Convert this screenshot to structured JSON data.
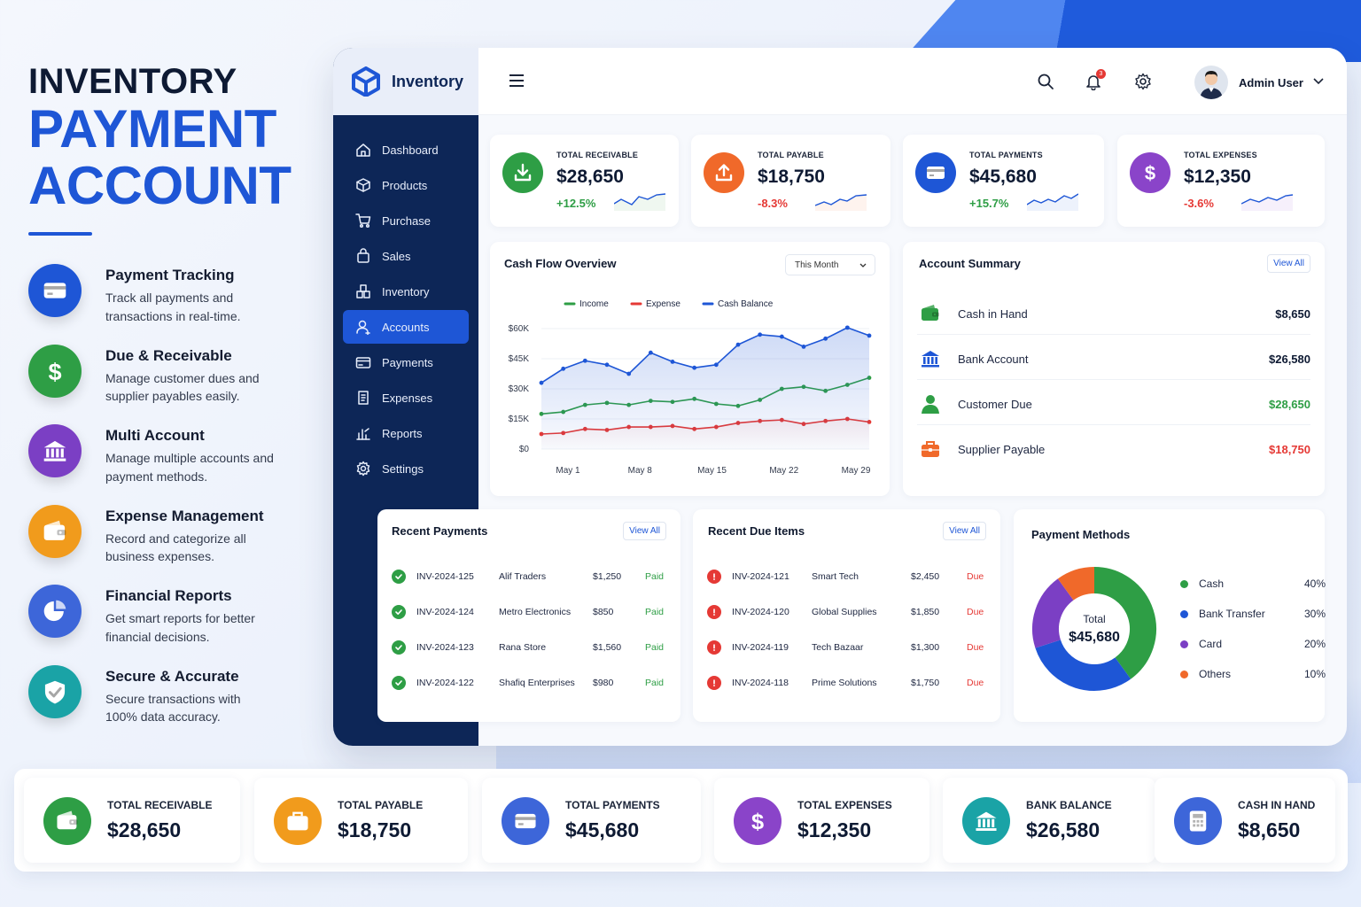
{
  "hero": {
    "line1": "INVENTORY",
    "line2": "PAYMENT",
    "line3": "ACCOUNT"
  },
  "features": [
    {
      "title": "Payment Tracking",
      "desc": "Track all payments and transactions in real-time.",
      "icon": "card-icon",
      "color": "#1e56d6"
    },
    {
      "title": "Due & Receivable",
      "desc": "Manage customer dues and supplier payables easily.",
      "icon": "dollar-icon",
      "color": "#2e9e45"
    },
    {
      "title": "Multi Account",
      "desc": "Manage multiple accounts and payment methods.",
      "icon": "bank-icon",
      "color": "#7b3fc4"
    },
    {
      "title": "Expense Management",
      "desc": "Record and categorize all business expenses.",
      "icon": "wallet-icon",
      "color": "#f19b1c"
    },
    {
      "title": "Financial Reports",
      "desc": "Get smart reports for better financial decisions.",
      "icon": "pie-icon",
      "color": "#3d66d9"
    },
    {
      "title": "Secure & Accurate",
      "desc": "Secure transactions with 100% data accuracy.",
      "icon": "shield-icon",
      "color": "#1aa3a6"
    }
  ],
  "app": {
    "brand": "Inventory",
    "user": "Admin User",
    "notifications": "3",
    "nav": [
      "Dashboard",
      "Products",
      "Purchase",
      "Sales",
      "Inventory",
      "Accounts",
      "Payments",
      "Expenses",
      "Reports",
      "Settings"
    ],
    "active_nav": "Accounts"
  },
  "kpis": [
    {
      "label": "TOTAL RECEIVABLE",
      "value": "$28,650",
      "change": "+12.5%",
      "color": "#2e9e45",
      "change_color": "#2e9e45"
    },
    {
      "label": "TOTAL PAYABLE",
      "value": "$18,750",
      "change": "-8.3%",
      "color": "#f0692a",
      "change_color": "#e53935"
    },
    {
      "label": "TOTAL PAYMENTS",
      "value": "$45,680",
      "change": "+15.7%",
      "color": "#1e56d6",
      "change_color": "#2e9e45"
    },
    {
      "label": "TOTAL EXPENSES",
      "value": "$12,350",
      "change": "-3.6%",
      "color": "#8a44c9",
      "change_color": "#e53935"
    }
  ],
  "cashflow": {
    "title": "Cash Flow Overview",
    "period": "This Month"
  },
  "chart_data": {
    "type": "line",
    "title": "Cash Flow Overview",
    "x": [
      "May 1",
      "May 3",
      "May 5",
      "May 7",
      "May 9",
      "May 11",
      "May 13",
      "May 15",
      "May 17",
      "May 19",
      "May 21",
      "May 23",
      "May 25",
      "May 27",
      "May 29",
      "May 31"
    ],
    "xticks": [
      "May 1",
      "May 8",
      "May 15",
      "May 22",
      "May 29"
    ],
    "yticks": [
      "$60K",
      "$45K",
      "$30K",
      "$15K",
      "$0"
    ],
    "ylim": [
      0,
      60000
    ],
    "legend_position": "top",
    "series": [
      {
        "name": "Income",
        "color": "#2e9e45",
        "values": [
          17500,
          18500,
          22000,
          23000,
          22000,
          24000,
          23500,
          25000,
          22500,
          21500,
          24500,
          30000,
          31000,
          29000,
          32000,
          35500
        ]
      },
      {
        "name": "Expense",
        "color": "#e53935",
        "values": [
          7500,
          8000,
          10000,
          9500,
          11000,
          11000,
          11500,
          10000,
          11000,
          13000,
          14000,
          14500,
          12500,
          14000,
          15000,
          13500
        ]
      },
      {
        "name": "Cash Balance",
        "color": "#1e56d6",
        "values": [
          33000,
          40000,
          44000,
          42000,
          37500,
          48000,
          43500,
          40500,
          42000,
          52000,
          57000,
          56000,
          51000,
          55000,
          60500,
          56500
        ]
      }
    ]
  },
  "account_summary": {
    "title": "Account Summary",
    "view_all": "View All",
    "rows": [
      {
        "name": "Cash in Hand",
        "value": "$8,650",
        "color": "#0e1a33",
        "icon": "wallet-icon",
        "icolor": "#2e9e45"
      },
      {
        "name": "Bank Account",
        "value": "$26,580",
        "color": "#0e1a33",
        "icon": "bank-icon",
        "icolor": "#1e56d6"
      },
      {
        "name": "Customer Due",
        "value": "$28,650",
        "color": "#2e9e45",
        "icon": "user-icon",
        "icolor": "#2e9e45"
      },
      {
        "name": "Supplier Payable",
        "value": "$18,750",
        "color": "#e53935",
        "icon": "briefcase-icon",
        "icolor": "#f0692a"
      }
    ]
  },
  "recent_payments": {
    "title": "Recent Payments",
    "view_all": "View All",
    "rows": [
      {
        "id": "INV-2024-125",
        "name": "Alif Traders",
        "amount": "$1,250",
        "status": "Paid"
      },
      {
        "id": "INV-2024-124",
        "name": "Metro Electronics",
        "amount": "$850",
        "status": "Paid"
      },
      {
        "id": "INV-2024-123",
        "name": "Rana Store",
        "amount": "$1,560",
        "status": "Paid"
      },
      {
        "id": "INV-2024-122",
        "name": "Shafiq Enterprises",
        "amount": "$980",
        "status": "Paid"
      }
    ]
  },
  "recent_due": {
    "title": "Recent Due Items",
    "view_all": "View All",
    "rows": [
      {
        "id": "INV-2024-121",
        "name": "Smart Tech",
        "amount": "$2,450",
        "status": "Due"
      },
      {
        "id": "INV-2024-120",
        "name": "Global Supplies",
        "amount": "$1,850",
        "status": "Due"
      },
      {
        "id": "INV-2024-119",
        "name": "Tech Bazaar",
        "amount": "$1,300",
        "status": "Due"
      },
      {
        "id": "INV-2024-118",
        "name": "Prime Solutions",
        "amount": "$1,750",
        "status": "Due"
      }
    ]
  },
  "payment_methods": {
    "title": "Payment Methods",
    "total_label": "Total",
    "total_value": "$45,680",
    "items": [
      {
        "name": "Cash",
        "percent": "40%",
        "value": 40,
        "color": "#2e9e45"
      },
      {
        "name": "Bank Transfer",
        "percent": "30%",
        "value": 30,
        "color": "#1e56d6"
      },
      {
        "name": "Card",
        "percent": "20%",
        "value": 20,
        "color": "#7b3fc4"
      },
      {
        "name": "Others",
        "percent": "10%",
        "value": 10,
        "color": "#f0692a"
      }
    ]
  },
  "bottom_cards": [
    {
      "label": "TOTAL RECEIVABLE",
      "value": "$28,650",
      "color": "#2e9e45",
      "icon": "wallet-icon"
    },
    {
      "label": "TOTAL PAYABLE",
      "value": "$18,750",
      "color": "#f19b1c",
      "icon": "briefcase-icon"
    },
    {
      "label": "TOTAL PAYMENTS",
      "value": "$45,680",
      "color": "#3d66d9",
      "icon": "card-icon"
    },
    {
      "label": "TOTAL EXPENSES",
      "value": "$12,350",
      "color": "#8a44c9",
      "icon": "dollar-icon"
    },
    {
      "label": "BANK BALANCE",
      "value": "$26,580",
      "color": "#1aa3a6",
      "icon": "bank-icon"
    },
    {
      "label": "CASH IN HAND",
      "value": "$8,650",
      "color": "#3d66d9",
      "icon": "calculator-icon"
    }
  ]
}
